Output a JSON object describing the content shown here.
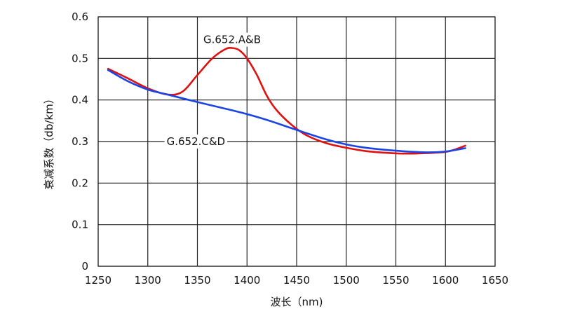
{
  "chart_data": {
    "type": "line",
    "title": "",
    "xlabel": "波长（nm)",
    "ylabel": "衰减系数（db/km）",
    "xlim": [
      1250,
      1650
    ],
    "ylim": [
      0,
      0.6
    ],
    "xticks": [
      1250,
      1300,
      1350,
      1400,
      1450,
      1500,
      1550,
      1600,
      1650
    ],
    "yticks": [
      0,
      0.1,
      0.2,
      0.3,
      0.4,
      0.5,
      0.6
    ],
    "xtick_labels": [
      "1250",
      "1300",
      "1350",
      "1400",
      "1450",
      "1500",
      "1550",
      "1600",
      "1650"
    ],
    "ytick_labels": [
      "0",
      "0.1",
      "0.2",
      "0.3",
      "0.4",
      "0.5",
      "0.6"
    ],
    "grid": true,
    "series": [
      {
        "name": "G.652.A&B",
        "color": "#e01010",
        "x": [
          1260,
          1280,
          1300,
          1320,
          1335,
          1350,
          1365,
          1378,
          1385,
          1392,
          1400,
          1410,
          1420,
          1430,
          1445,
          1460,
          1480,
          1500,
          1520,
          1540,
          1560,
          1580,
          1600,
          1610,
          1620
        ],
        "y": [
          0.475,
          0.452,
          0.428,
          0.413,
          0.42,
          0.46,
          0.5,
          0.522,
          0.525,
          0.52,
          0.5,
          0.46,
          0.41,
          0.375,
          0.34,
          0.315,
          0.296,
          0.285,
          0.277,
          0.273,
          0.271,
          0.272,
          0.275,
          0.281,
          0.29
        ]
      },
      {
        "name": "G.652.C&D",
        "color": "#1a44e6",
        "x": [
          1260,
          1280,
          1300,
          1320,
          1350,
          1380,
          1400,
          1420,
          1450,
          1480,
          1500,
          1520,
          1550,
          1580,
          1600,
          1620
        ],
        "y": [
          0.472,
          0.445,
          0.425,
          0.413,
          0.395,
          0.378,
          0.366,
          0.352,
          0.328,
          0.305,
          0.293,
          0.285,
          0.278,
          0.274,
          0.276,
          0.284
        ]
      }
    ],
    "annotations": [
      {
        "text": "G.652.A&B",
        "x": 1385,
        "y": 0.545,
        "anchor": "middle",
        "series": 0
      },
      {
        "text": "G.652.C&D",
        "x": 1378,
        "y": 0.3,
        "anchor": "end",
        "series": 1
      }
    ]
  }
}
